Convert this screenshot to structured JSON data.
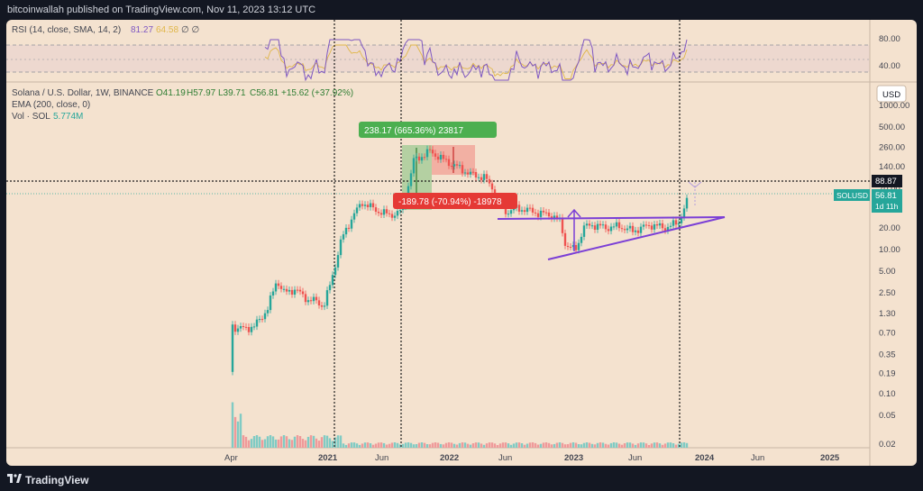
{
  "header": {
    "publisher": "bitcoinwallah published on TradingView.com, Nov 11, 2023 13:12 UTC"
  },
  "footer": {
    "brand": "TradingView"
  },
  "rsi": {
    "label": "RSI (14, close, SMA, 14, 2)",
    "value": "81.27",
    "sma_value": "64.58",
    "extra": "∅  ∅",
    "levels": [
      "80.00",
      "40.00"
    ]
  },
  "legend": {
    "line1": "Solana / U.S. Dollar, 1W, BINANCE",
    "o": "O41.19",
    "h": "H57.97",
    "l": "L39.71",
    "c": "C56.81",
    "chg": "+15.62 (+37.92%)",
    "line2": "EMA (200, close, 0)",
    "line3_label": "Vol · SOL",
    "line3_value": "5.774M"
  },
  "currency_button": "USD",
  "price_axis": [
    "1000.00",
    "500.00",
    "260.00",
    "140.00",
    "70.00",
    "40.00",
    "20.00",
    "10.00",
    "5.00",
    "2.50",
    "1.30",
    "0.70",
    "0.35",
    "0.19",
    "0.10",
    "0.05",
    "0.02"
  ],
  "price_marker": "88.87",
  "last_price": {
    "symbol": "SOLUSD",
    "price": "56.81",
    "countdown": "1d 11h"
  },
  "time_axis": [
    "Apr",
    "2021",
    "Jun",
    "2022",
    "Jun",
    "2023",
    "Jun",
    "2024",
    "Jun",
    "2025"
  ],
  "annotations": {
    "gain": "238.17 (665.36%) 23817",
    "loss": "-189.78 (-70.94%) -18978"
  },
  "colors": {
    "up": "#26a69a",
    "down": "#ef5350",
    "panel": "#f4e2cf",
    "rsi": "#7e57c2",
    "trend": "#7b3fd6"
  },
  "chart_data": {
    "type": "candlestick",
    "title": "Solana / U.S. Dollar, 1W, BINANCE",
    "y_scale": "log",
    "ylim": [
      0.02,
      1000
    ],
    "x": [
      "2020-04",
      "2020-06",
      "2020-08",
      "2020-10",
      "2020-12",
      "2021-02",
      "2021-04",
      "2021-06",
      "2021-08",
      "2021-10",
      "2021-12",
      "2022-02",
      "2022-04",
      "2022-06",
      "2022-08",
      "2022-10",
      "2022-12",
      "2023-02",
      "2023-04",
      "2023-06",
      "2023-08",
      "2023-10",
      "2023-11"
    ],
    "close": [
      0.8,
      0.8,
      3.5,
      2.3,
      1.8,
      10,
      30,
      35,
      38,
      220,
      175,
      100,
      110,
      35,
      34,
      32,
      10,
      22,
      21,
      20,
      24,
      40,
      56.81
    ],
    "last": {
      "open": 41.19,
      "high": 57.97,
      "low": 39.71,
      "close": 56.81,
      "change": 15.62,
      "change_pct": 37.92
    },
    "ema200_last": 22,
    "measurements": [
      {
        "label": "238.17 (665.36%) 23817",
        "from": 35.8,
        "to": 274
      },
      {
        "label": "-189.78 (-70.94%) -18978",
        "from": 267.5,
        "to": 77.7
      }
    ],
    "horizontal_level": 88.87,
    "rsi_last": 81.27,
    "volume_last": "5.774M"
  }
}
